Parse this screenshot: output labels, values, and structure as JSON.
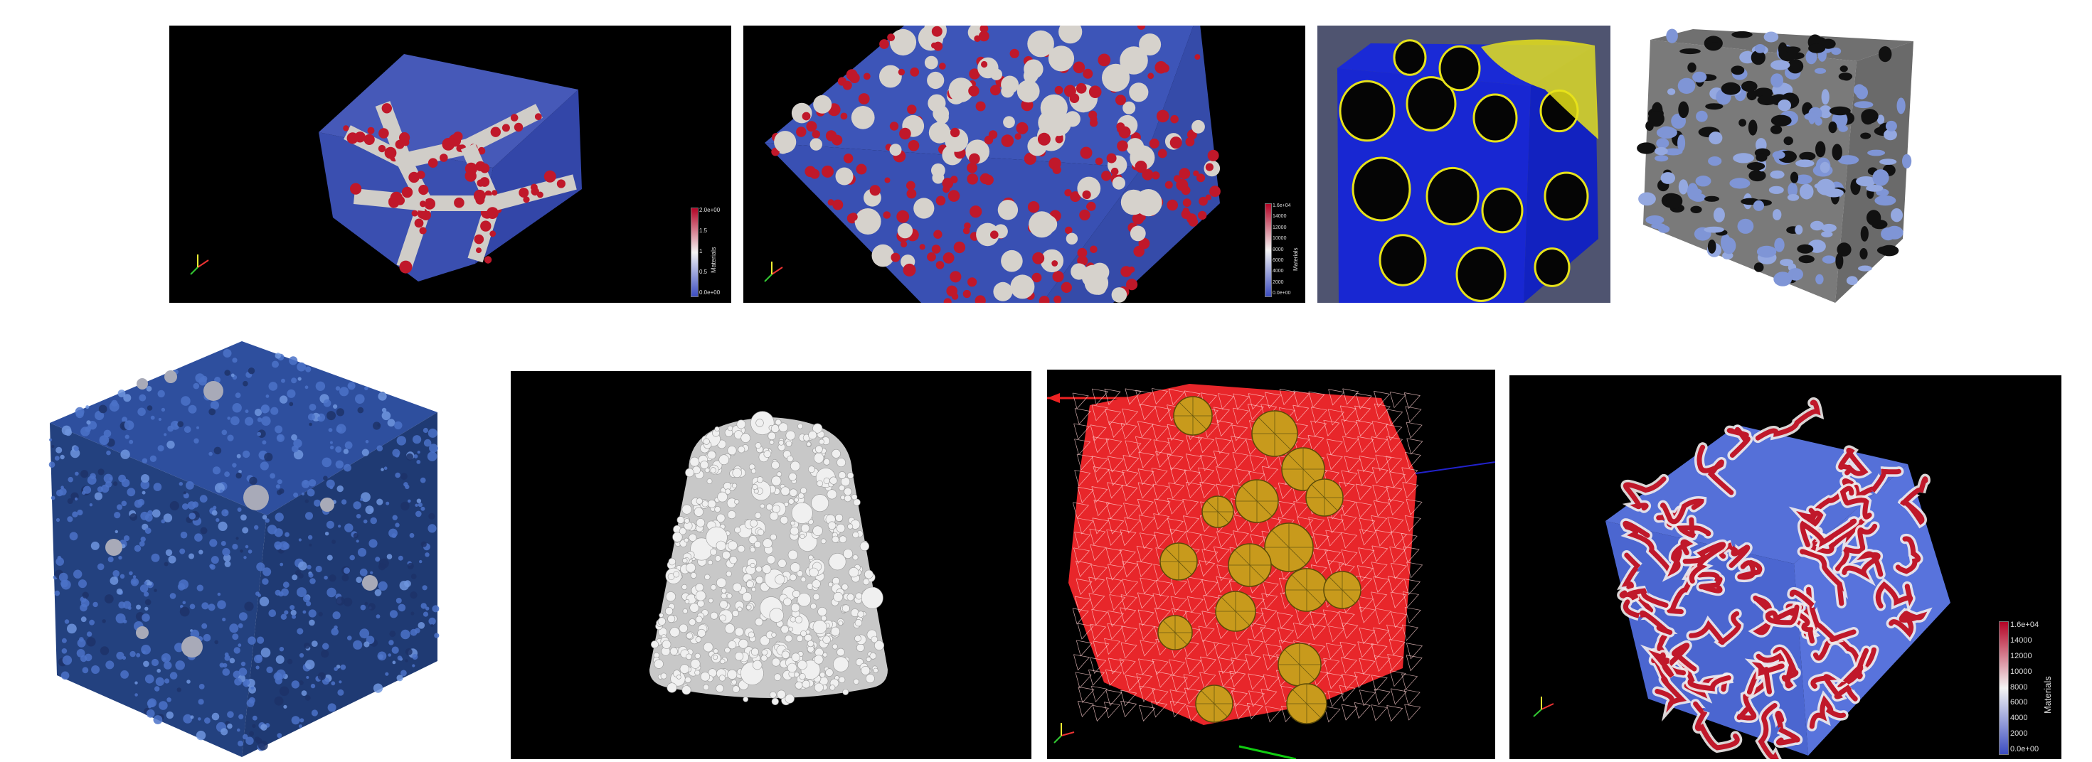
{
  "panels": [
    {
      "id": "p1",
      "desc": "cube-with-red-particles",
      "background": "#000000"
    },
    {
      "id": "p2",
      "desc": "zoomed-cube-with-aggregates",
      "background": "#000000"
    },
    {
      "id": "p3",
      "desc": "blue-cube-yellow-pores",
      "background": "#4f5470"
    },
    {
      "id": "p4",
      "desc": "grey-blue-porous-cube",
      "background": "#ffffff"
    },
    {
      "id": "p5",
      "desc": "concrete-mesostructure-cube",
      "background": "#ffffff"
    },
    {
      "id": "p6",
      "desc": "sphere-packing-cylinder",
      "background": "#000000"
    },
    {
      "id": "p7",
      "desc": "tetra-mesh-with-spheres",
      "background": "#000000"
    },
    {
      "id": "p8",
      "desc": "phase-field-cube",
      "background": "#000000"
    }
  ],
  "colorbars": {
    "p1": {
      "ticks": [
        "2.0e+00",
        "1.5",
        "1",
        "0.5",
        "0.0e+00"
      ],
      "title": "Materials"
    },
    "p2": {
      "ticks": [
        "1.6e+04",
        "14000",
        "12000",
        "10000",
        "8000",
        "6000",
        "4000",
        "2000",
        "0.0e+00"
      ],
      "title": "Materials"
    },
    "p8": {
      "ticks": [
        "1.6e+04",
        "14000",
        "12000",
        "10000",
        "8000",
        "6000",
        "4000",
        "2000",
        "0.0e+00"
      ],
      "title": "Materials"
    }
  },
  "colors": {
    "blue": "#3a4fb0",
    "red": "#c0182a",
    "grey": "#d0cdc8",
    "yellow": "#e6e21a",
    "pore": "#050505",
    "gold": "#c89a1c",
    "meshRed": "#e8262a"
  }
}
